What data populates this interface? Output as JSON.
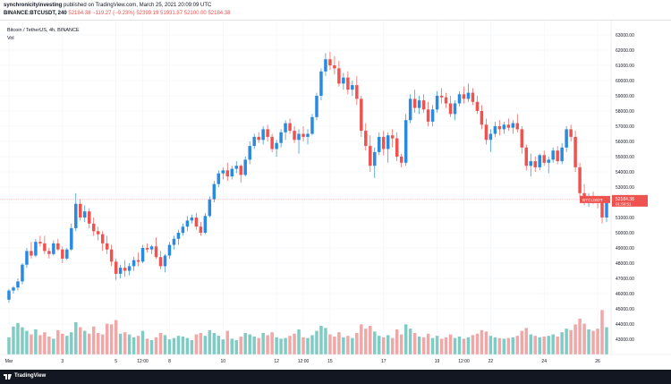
{
  "header": {
    "author": "synchronicityinvesting",
    "published_text": "published on TradingView.com, March 25, 2021 20:09:09 UTC",
    "symbol_line": "BINANCE:BTCUSDT, 240",
    "ohlc": {
      "open": "52184.38",
      "change": "−119.27 (−0.23%)",
      "high": "52399.19",
      "low": "51931.87",
      "low_label": "52100.00",
      "close": "52184.38"
    }
  },
  "legend": {
    "title": "Bitcoin / TetherUS, 4h, BINANCE",
    "volume_label": "Vol"
  },
  "colors": {
    "up": "#26a69a",
    "up_candle": "#2a8ae0",
    "down": "#ef5350",
    "vol_up": "#80cbc4",
    "vol_down": "#f0a7a7",
    "grid": "#f0f3fa",
    "text": "#131722",
    "price_line": "#ef9a9a"
  },
  "chart_data": {
    "type": "candlestick",
    "interval": "4h",
    "symbol": "BTCUSDT",
    "exchange": "BINANCE",
    "ylim": [
      42000,
      64000
    ],
    "y_ticks": [
      43000,
      44000,
      45000,
      46000,
      47000,
      48000,
      49000,
      50000,
      51000,
      52000,
      53000,
      54000,
      55000,
      56000,
      57000,
      58000,
      59000,
      60000,
      61000,
      62000,
      63000
    ],
    "x_ticks": [
      "Mar",
      "3",
      "5",
      "12:00",
      "8",
      "10",
      "12",
      "12:00",
      "15",
      "17",
      "19",
      "12:00",
      "22",
      "24",
      "26"
    ],
    "x_tick_candle_index": [
      0,
      12,
      24,
      30,
      36,
      48,
      60,
      66,
      72,
      84,
      96,
      102,
      108,
      120,
      132
    ],
    "last_price": {
      "value": 52184.38,
      "label": "BTCUSDT",
      "price_text": "52184.38",
      "countdown": "01:50:51"
    },
    "volume_max": 10000,
    "candles": [
      [
        45600,
        46300,
        45400,
        46200,
        2400
      ],
      [
        46200,
        46500,
        46000,
        46400,
        3900
      ],
      [
        46400,
        47000,
        46200,
        46800,
        4400
      ],
      [
        46800,
        48000,
        46600,
        47900,
        3800
      ],
      [
        47900,
        49000,
        47700,
        48800,
        3300
      ],
      [
        48800,
        49400,
        48300,
        48500,
        2800
      ],
      [
        48500,
        49600,
        48400,
        49400,
        3500
      ],
      [
        49400,
        49800,
        49100,
        49300,
        2700
      ],
      [
        49300,
        49800,
        48600,
        48800,
        3100
      ],
      [
        48800,
        49000,
        48300,
        48600,
        2500
      ],
      [
        48600,
        49500,
        48500,
        49300,
        2200
      ],
      [
        49300,
        49600,
        48800,
        48900,
        3400
      ],
      [
        48900,
        49100,
        48000,
        48300,
        2900
      ],
      [
        48300,
        49000,
        48200,
        48900,
        2600
      ],
      [
        48900,
        50600,
        48800,
        50300,
        3100
      ],
      [
        50300,
        52600,
        50100,
        51900,
        4500
      ],
      [
        51900,
        52200,
        50800,
        51000,
        3800
      ],
      [
        51000,
        51800,
        50700,
        51400,
        3300
      ],
      [
        51400,
        51600,
        50300,
        50600,
        2900
      ],
      [
        50600,
        51000,
        49800,
        50100,
        3900
      ],
      [
        50100,
        50400,
        49500,
        49900,
        3000
      ],
      [
        49900,
        50100,
        48800,
        49300,
        2800
      ],
      [
        49300,
        49800,
        48600,
        48900,
        4300
      ],
      [
        48900,
        49200,
        47800,
        48100,
        4200
      ],
      [
        48100,
        48300,
        46900,
        47300,
        4800
      ],
      [
        47300,
        47900,
        47000,
        47700,
        2900
      ],
      [
        47700,
        48200,
        47100,
        47500,
        3100
      ],
      [
        47500,
        48000,
        47200,
        47800,
        2800
      ],
      [
        47800,
        48400,
        47500,
        48200,
        2400
      ],
      [
        48200,
        48700,
        47800,
        48100,
        2600
      ],
      [
        48100,
        49200,
        48000,
        49000,
        3300
      ],
      [
        49000,
        49300,
        48700,
        48900,
        2200
      ],
      [
        48900,
        49200,
        48600,
        49100,
        2000
      ],
      [
        49100,
        49700,
        48300,
        48400,
        2400
      ],
      [
        48400,
        48800,
        47600,
        47800,
        3000
      ],
      [
        47800,
        48600,
        47400,
        48500,
        2700
      ],
      [
        48500,
        49400,
        48300,
        49200,
        2100
      ],
      [
        49200,
        49800,
        48900,
        49600,
        2300
      ],
      [
        49600,
        50200,
        49200,
        50000,
        2600
      ],
      [
        50000,
        50600,
        49800,
        50400,
        2500
      ],
      [
        50400,
        51100,
        50100,
        50800,
        2300
      ],
      [
        50800,
        51200,
        50600,
        51000,
        2000
      ],
      [
        51000,
        51300,
        50200,
        50400,
        2800
      ],
      [
        50400,
        50700,
        49800,
        50000,
        3000
      ],
      [
        50000,
        51300,
        49900,
        51100,
        2600
      ],
      [
        51100,
        52400,
        51000,
        52200,
        3400
      ],
      [
        52200,
        53400,
        52000,
        53200,
        3000
      ],
      [
        53200,
        54100,
        53000,
        53900,
        2600
      ],
      [
        53900,
        54300,
        53500,
        54100,
        2100
      ],
      [
        54100,
        54600,
        53400,
        53700,
        3300
      ],
      [
        53700,
        54400,
        53500,
        54200,
        2200
      ],
      [
        54200,
        54700,
        53900,
        54400,
        2000
      ],
      [
        54400,
        54500,
        53300,
        53800,
        2500
      ],
      [
        53800,
        55000,
        53700,
        54800,
        3000
      ],
      [
        54800,
        56000,
        54500,
        55700,
        2800
      ],
      [
        55700,
        56500,
        55500,
        56300,
        2500
      ],
      [
        56300,
        56600,
        55900,
        56100,
        2300
      ],
      [
        56100,
        57000,
        55800,
        56800,
        3000
      ],
      [
        56800,
        57100,
        56000,
        56300,
        2700
      ],
      [
        56300,
        56500,
        55300,
        55500,
        3100
      ],
      [
        55500,
        56100,
        55000,
        55900,
        2400
      ],
      [
        55900,
        56800,
        55600,
        56600,
        2200
      ],
      [
        56600,
        57400,
        56100,
        57200,
        2300
      ],
      [
        57200,
        57500,
        56500,
        56700,
        2600
      ],
      [
        56700,
        57000,
        55900,
        56100,
        2900
      ],
      [
        56100,
        56800,
        55200,
        56500,
        3500
      ],
      [
        56500,
        57000,
        56000,
        56300,
        2400
      ],
      [
        56300,
        56800,
        55800,
        56500,
        2300
      ],
      [
        56500,
        57800,
        56400,
        57600,
        2700
      ],
      [
        57600,
        59200,
        57400,
        59000,
        3300
      ],
      [
        59000,
        60800,
        58700,
        60600,
        4000
      ],
      [
        60600,
        61800,
        60300,
        61400,
        3700
      ],
      [
        61400,
        61900,
        60700,
        61000,
        2800
      ],
      [
        61000,
        61600,
        60400,
        60800,
        2500
      ],
      [
        60800,
        61300,
        59600,
        59800,
        3100
      ],
      [
        59800,
        60500,
        59400,
        60200,
        2400
      ],
      [
        60200,
        60600,
        59100,
        59400,
        2600
      ],
      [
        59400,
        60000,
        59000,
        59700,
        2300
      ],
      [
        59700,
        60300,
        58400,
        58800,
        3000
      ],
      [
        58800,
        59000,
        56300,
        56700,
        4200
      ],
      [
        56700,
        57200,
        55400,
        55700,
        3600
      ],
      [
        55700,
        56400,
        54000,
        54400,
        4000
      ],
      [
        54400,
        55600,
        53600,
        55300,
        3200
      ],
      [
        55300,
        56600,
        55100,
        56300,
        2600
      ],
      [
        56300,
        56700,
        55100,
        55500,
        2400
      ],
      [
        55500,
        56600,
        54600,
        56400,
        2700
      ],
      [
        56400,
        56800,
        55600,
        56200,
        2300
      ],
      [
        56200,
        56600,
        54700,
        55000,
        3500
      ],
      [
        55000,
        55200,
        54300,
        54600,
        2800
      ],
      [
        54600,
        57800,
        54400,
        57400,
        4200
      ],
      [
        57400,
        59100,
        57200,
        58800,
        3600
      ],
      [
        58800,
        59400,
        57900,
        58200,
        3000
      ],
      [
        58200,
        59000,
        57800,
        58700,
        2500
      ],
      [
        58700,
        59100,
        57900,
        58100,
        2400
      ],
      [
        58100,
        58600,
        57000,
        57300,
        2900
      ],
      [
        57300,
        58400,
        57000,
        58100,
        2300
      ],
      [
        58100,
        59300,
        57900,
        59000,
        2600
      ],
      [
        59000,
        59500,
        58500,
        58900,
        2200
      ],
      [
        58900,
        59200,
        58200,
        58500,
        2400
      ],
      [
        58500,
        59000,
        57600,
        57800,
        2800
      ],
      [
        57800,
        58700,
        57400,
        58500,
        2300
      ],
      [
        58500,
        59300,
        58300,
        59100,
        2500
      ],
      [
        59100,
        59600,
        58500,
        58800,
        2200
      ],
      [
        58800,
        59800,
        58600,
        59200,
        2400
      ],
      [
        59200,
        59500,
        58400,
        58600,
        2700
      ],
      [
        58600,
        59000,
        57800,
        58000,
        2900
      ],
      [
        58000,
        58400,
        56800,
        57100,
        3400
      ],
      [
        57100,
        57500,
        55800,
        56100,
        3200
      ],
      [
        56100,
        56800,
        55300,
        56500,
        2600
      ],
      [
        56500,
        57300,
        56300,
        57000,
        2400
      ],
      [
        57000,
        57400,
        56400,
        56800,
        2300
      ],
      [
        56800,
        57300,
        56500,
        57100,
        2200
      ],
      [
        57100,
        57500,
        56700,
        56900,
        2300
      ],
      [
        56900,
        57400,
        56500,
        57200,
        2400
      ],
      [
        57200,
        57800,
        56600,
        56800,
        2600
      ],
      [
        56800,
        57000,
        55200,
        55600,
        3300
      ],
      [
        55600,
        55800,
        54100,
        54400,
        3700
      ],
      [
        54400,
        55200,
        53700,
        54700,
        2800
      ],
      [
        54700,
        55000,
        54000,
        54300,
        2600
      ],
      [
        54300,
        55200,
        54100,
        55100,
        2400
      ],
      [
        55100,
        55400,
        54400,
        54600,
        2500
      ],
      [
        54600,
        55000,
        53900,
        54800,
        2600
      ],
      [
        54800,
        55600,
        54600,
        55400,
        2800
      ],
      [
        55400,
        55700,
        54500,
        54700,
        2500
      ],
      [
        54700,
        55900,
        54500,
        55600,
        3100
      ],
      [
        55600,
        57000,
        55300,
        56800,
        3600
      ],
      [
        56800,
        57100,
        56000,
        56300,
        3400
      ],
      [
        56300,
        56700,
        54000,
        54300,
        4200
      ],
      [
        54300,
        54600,
        52300,
        52600,
        5000
      ],
      [
        52600,
        53200,
        51800,
        52200,
        4300
      ],
      [
        52200,
        52600,
        51700,
        52300,
        3500
      ],
      [
        52300,
        52700,
        51900,
        52100,
        3300
      ],
      [
        52100,
        52400,
        51600,
        52000,
        3600
      ],
      [
        52000,
        52200,
        50600,
        51000,
        6200
      ],
      [
        51000,
        52300,
        50700,
        52184,
        3800
      ]
    ]
  },
  "footer": {
    "brand": "TradingView"
  }
}
